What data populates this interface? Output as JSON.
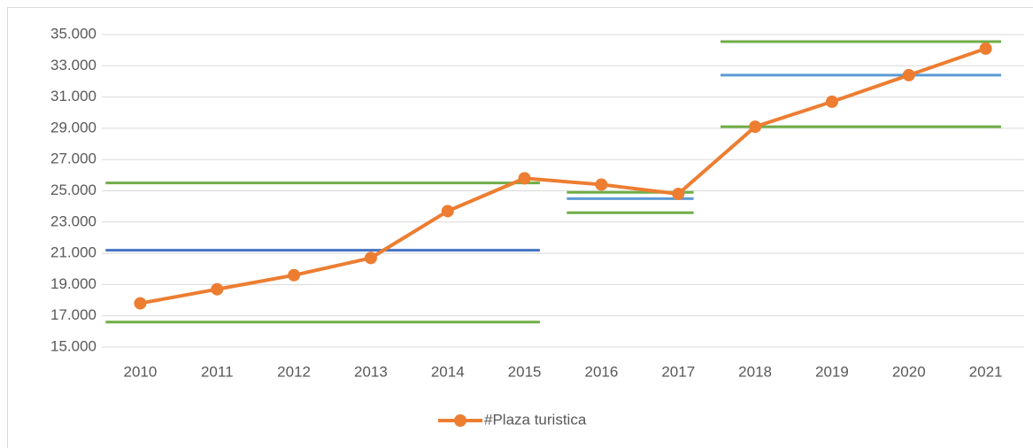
{
  "chart_data": {
    "type": "line",
    "categories": [
      "2010",
      "2011",
      "2012",
      "2013",
      "2014",
      "2015",
      "2016",
      "2017",
      "2018",
      "2019",
      "2020",
      "2021"
    ],
    "series": [
      {
        "name": "#Plaza turistica",
        "color": "#ed7d31",
        "values": [
          17800,
          18700,
          19600,
          20700,
          23700,
          25800,
          25400,
          24800,
          29100,
          30700,
          32400,
          34100
        ]
      }
    ],
    "reference_lines": [
      {
        "value": 25500,
        "start": "2010",
        "end": "2015",
        "color": "#70ad47"
      },
      {
        "value": 21200,
        "start": "2010",
        "end": "2015",
        "color": "#4472c4"
      },
      {
        "value": 16600,
        "start": "2010",
        "end": "2015",
        "color": "#70ad47"
      },
      {
        "value": 24900,
        "start": "2016",
        "end": "2017",
        "color": "#70ad47"
      },
      {
        "value": 24500,
        "start": "2016",
        "end": "2017",
        "color": "#5b9bd5"
      },
      {
        "value": 23600,
        "start": "2016",
        "end": "2017",
        "color": "#70ad47"
      },
      {
        "value": 34550,
        "start": "2018",
        "end": "2021",
        "color": "#70ad47"
      },
      {
        "value": 32400,
        "start": "2018",
        "end": "2021",
        "color": "#5b9bd5"
      },
      {
        "value": 29100,
        "start": "2018",
        "end": "2021",
        "color": "#70ad47"
      }
    ],
    "ylim": [
      15000,
      35000
    ],
    "yticks": [
      {
        "value": 15000,
        "label": "15.000"
      },
      {
        "value": 17000,
        "label": "17.000"
      },
      {
        "value": 19000,
        "label": "19.000"
      },
      {
        "value": 21000,
        "label": "21.000"
      },
      {
        "value": 23000,
        "label": "23.000"
      },
      {
        "value": 25000,
        "label": "25.000"
      },
      {
        "value": 27000,
        "label": "27.000"
      },
      {
        "value": 29000,
        "label": "29.000"
      },
      {
        "value": 31000,
        "label": "31.000"
      },
      {
        "value": 33000,
        "label": "33.000"
      },
      {
        "value": 35000,
        "label": "35.000"
      }
    ],
    "grid": true,
    "legend": "bottom"
  }
}
